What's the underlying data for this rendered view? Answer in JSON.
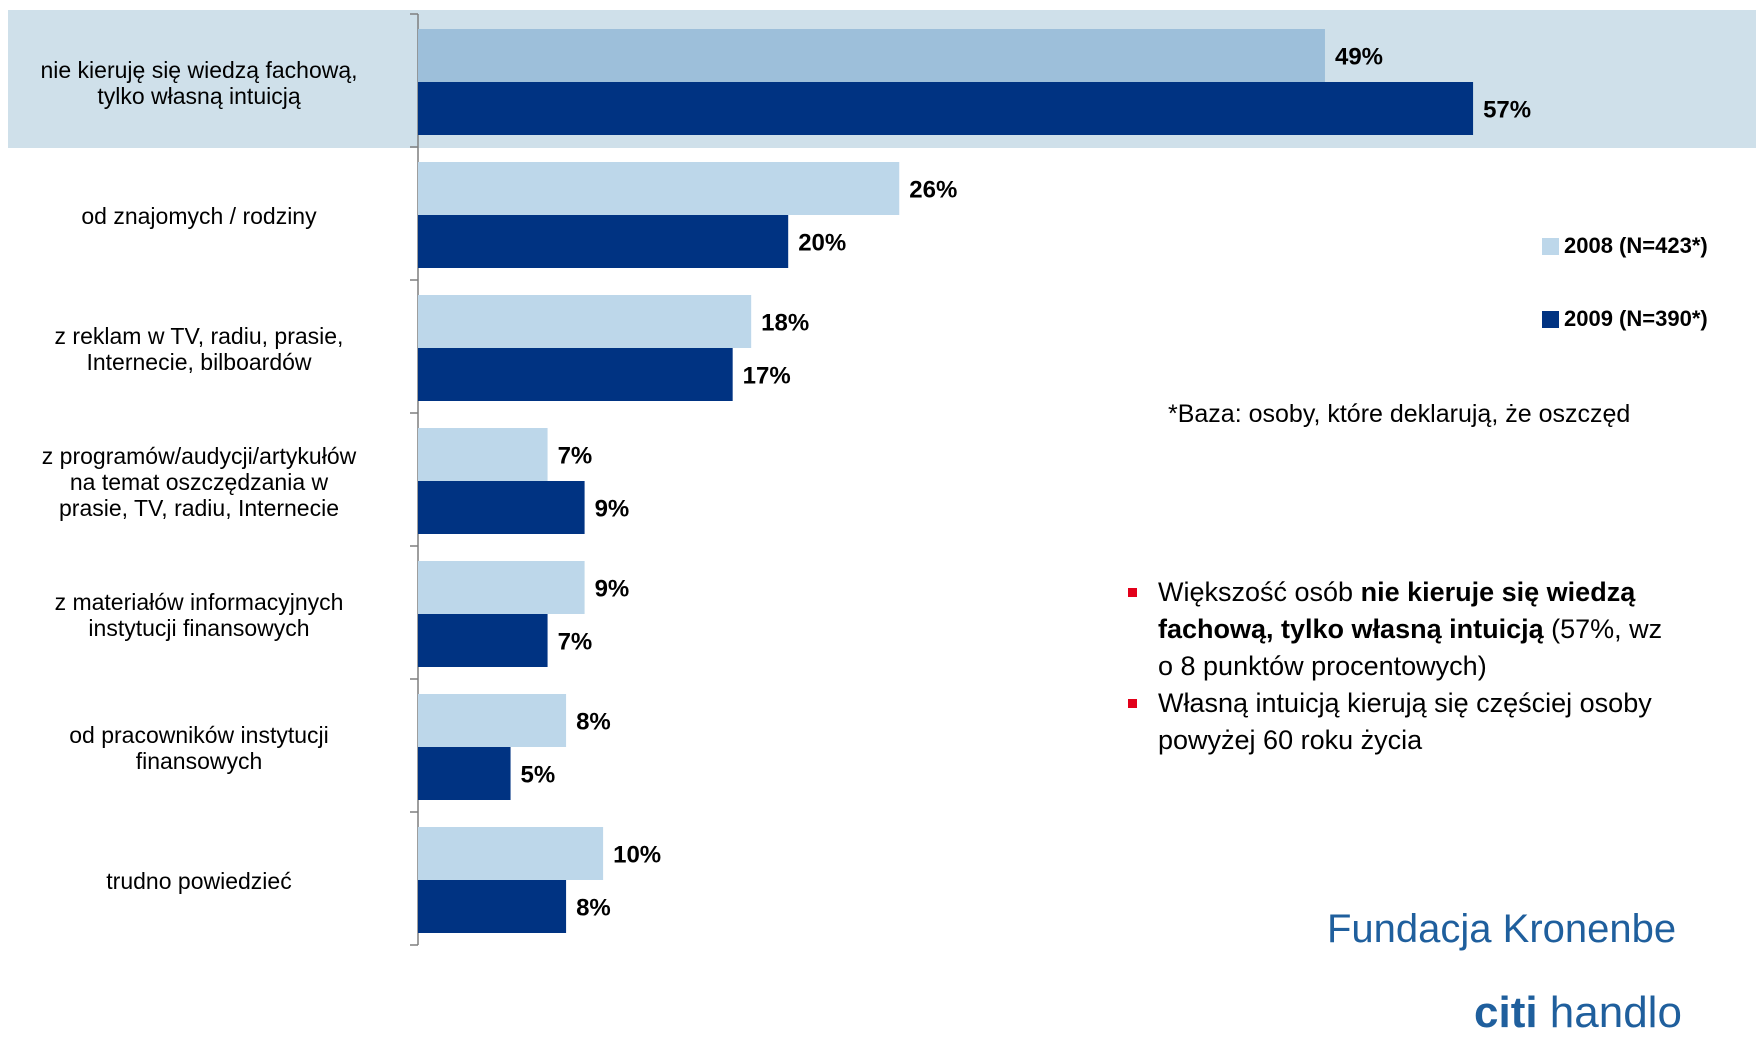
{
  "chart_data": {
    "type": "bar",
    "orientation": "horizontal",
    "categories": [
      [
        "nie kieruję się wiedzą fachową,",
        "tylko własną intuicją"
      ],
      [
        "od znajomych / rodziny"
      ],
      [
        "z reklam w TV, radiu, prasie,",
        "Internecie, bilboardów"
      ],
      [
        "z programów/audycji/artykułów",
        "na temat oszczędzania w",
        "prasie, TV, radiu, Internecie"
      ],
      [
        "z materiałów informacyjnych",
        "instytucji finansowych"
      ],
      [
        "od pracowników instytucji",
        "finansowych"
      ],
      [
        "trudno powiedzieć"
      ]
    ],
    "series": [
      {
        "name": "2008 (N=423*)",
        "values": [
          49,
          26,
          18,
          7,
          9,
          8,
          10
        ],
        "color": "#bdd7ea"
      },
      {
        "name": "2009 (N=390*)",
        "values": [
          57,
          20,
          17,
          9,
          7,
          5,
          8
        ],
        "color": "#003382"
      }
    ],
    "value_suffix": "%",
    "highlighted_category_index": 0,
    "highlight_color": "#cfe0ea",
    "highlight_series0_color": "#9dbfda",
    "legend_position": "right",
    "grid": false
  },
  "legend": {
    "item_2008": "2008 (N=423*)",
    "item_2009": "2009 (N=390*)"
  },
  "base_note": "*Baza: osoby, które deklarują, że oszczęd",
  "bullets": [
    {
      "line1_pre": "Większość osób ",
      "line1_bold": "nie kieruje się wiedzą",
      "line2_bold": "fachową, tylko własną intuicją",
      "line2_rest": " (57%, wz",
      "line3": "o 8  punktów procentowych)"
    },
    {
      "line1": "Własną intuicją kierują się częściej  osoby",
      "line2": "powyżej 60 roku życia"
    }
  ],
  "logos": {
    "fundacja": "Fundacja Kronenbe",
    "citi": "citi",
    "handlo": " handlo"
  }
}
